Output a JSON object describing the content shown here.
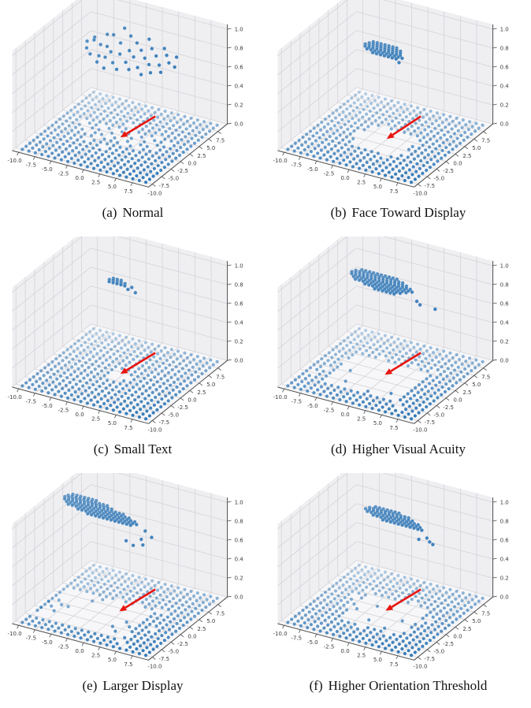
{
  "style": {
    "background": "#ffffff",
    "dot_color": "#2f76b5",
    "arrow_color": "#e8150f",
    "wall_color": "#efeff2",
    "floor_color": "#f7f7f9",
    "grid_color": "#d4d4d8",
    "axis_color": "#4d4d4d",
    "tick_label_color": "#3d3d3d",
    "caption_color": "#111111"
  },
  "chart_data": {
    "type": "scatter3d",
    "layout": {
      "rows": 3,
      "cols": 2,
      "grid": true,
      "view": {
        "elev": 30,
        "azim": -60
      },
      "legend": "none"
    },
    "axes": {
      "x_range": [
        -11,
        10
      ],
      "y_range": [
        -11,
        10
      ],
      "z_range": [
        0,
        1
      ],
      "x_ticks": [
        -10,
        -7.5,
        -5,
        -2.5,
        0,
        2.5,
        5,
        7.5
      ],
      "x_tick_labels": [
        "-10.0",
        "-7.5",
        "-5.0",
        "-2.5",
        "0.0",
        "2.5",
        "5.0",
        "7.5"
      ],
      "y_ticks": [
        -10,
        -7.5,
        -5,
        -2.5,
        0,
        2.5,
        5,
        7.5
      ],
      "y_tick_labels": [
        "-10.0",
        "-7.5",
        "-5.0",
        "-2.5",
        "0.0",
        "2.5",
        "5.0",
        "7.5"
      ],
      "z_ticks": [
        0,
        0.2,
        0.4,
        0.6,
        0.8,
        1
      ],
      "z_tick_labels": [
        "0.0",
        "0.2",
        "0.4",
        "0.6",
        "0.8",
        "1.0"
      ]
    },
    "floor_grid": {
      "x_min": -10,
      "x_max": 9,
      "y_min": -10,
      "y_max": 9,
      "step": 1,
      "z": 0
    },
    "subplots": [
      {
        "id": "a",
        "caption_label": "(a)",
        "caption_text": "Normal",
        "floor_hole_rect": null,
        "floor_holes": [
          [
            -6,
            0
          ],
          [
            -5,
            -1
          ],
          [
            -4,
            1
          ],
          [
            -3,
            0
          ],
          [
            -3,
            -2
          ],
          [
            -2,
            1
          ],
          [
            -2,
            -1
          ],
          [
            -1,
            0
          ],
          [
            -1,
            3
          ],
          [
            0,
            0
          ],
          [
            0,
            -1
          ],
          [
            0,
            2
          ],
          [
            1,
            -2
          ],
          [
            1,
            1
          ],
          [
            2,
            0
          ],
          [
            2,
            -1
          ],
          [
            3,
            1
          ],
          [
            3,
            -2
          ],
          [
            4,
            0
          ],
          [
            5,
            -1
          ],
          [
            -4,
            -3
          ],
          [
            6,
            1
          ],
          [
            -7,
            1
          ],
          [
            4,
            2
          ],
          [
            -1,
            -4
          ]
        ],
        "floor_extra_points": [],
        "cloud": {
          "z": 0.86,
          "rows": [],
          "points": [
            [
              -6.5,
              1.2,
              0.85
            ],
            [
              -6,
              0.2,
              0.82
            ],
            [
              -5.8,
              2,
              0.88
            ],
            [
              -5.2,
              0.8,
              0.9
            ],
            [
              -5,
              -0.6,
              0.8
            ],
            [
              -4.6,
              1.5,
              0.84
            ],
            [
              -4.2,
              2.6,
              0.92
            ],
            [
              -4,
              0,
              0.78
            ],
            [
              -3.6,
              -1.2,
              0.76
            ],
            [
              -3.3,
              1,
              0.86
            ],
            [
              -3,
              2.2,
              0.95
            ],
            [
              -2.8,
              -0.4,
              0.8
            ],
            [
              -2.5,
              0.6,
              0.83
            ],
            [
              -2.2,
              -1.8,
              0.74
            ],
            [
              -2,
              3.4,
              1
            ],
            [
              -1.7,
              1.8,
              0.9
            ],
            [
              -1.4,
              -0.8,
              0.78
            ],
            [
              -1,
              0.4,
              0.84
            ],
            [
              -0.7,
              2.8,
              0.96
            ],
            [
              -0.4,
              -1.5,
              0.75
            ],
            [
              0,
              1.2,
              0.87
            ],
            [
              0.3,
              -0.3,
              0.8
            ],
            [
              0.6,
              2.2,
              0.93
            ],
            [
              1,
              0.6,
              0.84
            ],
            [
              1.3,
              -1.2,
              0.77
            ],
            [
              1.6,
              1.6,
              0.89
            ],
            [
              2,
              3,
              0.97
            ],
            [
              2.3,
              -0.6,
              0.79
            ],
            [
              2.6,
              0.8,
              0.85
            ],
            [
              3,
              2,
              0.92
            ],
            [
              3.3,
              -1.4,
              0.76
            ],
            [
              3.6,
              0.2,
              0.82
            ],
            [
              4,
              1.4,
              0.88
            ],
            [
              4.4,
              -0.8,
              0.78
            ],
            [
              4.7,
              2.4,
              0.94
            ],
            [
              5,
              0.5,
              0.83
            ],
            [
              5.4,
              1.8,
              0.9
            ],
            [
              5.8,
              -0.5,
              0.8
            ],
            [
              6.2,
              1,
              0.86
            ],
            [
              6.8,
              2,
              0.9
            ],
            [
              7.2,
              0.8,
              0.84
            ]
          ]
        },
        "arrow": {
          "tip": [
            0,
            -1.2
          ],
          "tail": [
            3.6,
            1.9
          ]
        }
      },
      {
        "id": "b",
        "caption_label": "(b)",
        "caption_text": "Face Toward Display",
        "floor_hole_rect": [
          -3,
          3,
          -4,
          1
        ],
        "floor_holes": [
          [
            -4,
            -1
          ],
          [
            -4,
            -2
          ],
          [
            4,
            0
          ],
          [
            4,
            -3
          ],
          [
            2,
            -5
          ],
          [
            -2,
            2
          ]
        ],
        "floor_extra_points": [],
        "cloud": {
          "z": 0.86,
          "rows": [
            [
              2.2,
              -3.9,
              7
            ],
            [
              1.65,
              -4.2,
              9
            ],
            [
              1.1,
              -4.5,
              10
            ],
            [
              0.55,
              -4.2,
              10
            ],
            [
              0,
              -3.6,
              10
            ],
            [
              -0.55,
              -2.4,
              7
            ]
          ],
          "points": [
            [
              1.8,
              -0.8,
              0.84
            ]
          ]
        },
        "arrow": {
          "tip": [
            0.3,
            -1.5
          ],
          "tail": [
            3.6,
            1.9
          ]
        }
      },
      {
        "id": "c",
        "caption_label": "(c)",
        "caption_text": "Small Text",
        "floor_hole_rect": null,
        "floor_holes": [
          [
            -1,
            -2
          ],
          [
            0,
            -2
          ],
          [
            -1,
            -1
          ],
          [
            0,
            -1
          ],
          [
            1,
            -1
          ],
          [
            -1,
            0
          ],
          [
            0,
            0
          ]
        ],
        "floor_extra_points": [],
        "cloud": {
          "z": 0.9,
          "rows": [
            [
              1.6,
              -2.7,
              3
            ],
            [
              1.05,
              -3,
              5
            ],
            [
              0.5,
              -2.7,
              5
            ]
          ],
          "points": [
            [
              0.6,
              0.8,
              0.89
            ],
            [
              0.3,
              0.3,
              0.88
            ],
            [
              1.5,
              0.2,
              0.87
            ]
          ]
        },
        "arrow": {
          "tip": [
            0,
            -1.2
          ],
          "tail": [
            3.6,
            1.9
          ]
        }
      },
      {
        "id": "d",
        "caption_label": "(d)",
        "caption_text": "Higher Visual Acuity",
        "floor_hole_rect": [
          -6,
          4,
          -6,
          2
        ],
        "floor_holes": [
          [
            -7,
            0
          ],
          [
            -8,
            -3
          ],
          [
            5,
            -7
          ],
          [
            5,
            3
          ],
          [
            -3,
            3
          ],
          [
            2,
            3
          ],
          [
            6,
            -8
          ],
          [
            -9,
            -5
          ]
        ],
        "floor_extra_points": [
          [
            -5,
            -2
          ],
          [
            -4,
            -5
          ],
          [
            3,
            -5
          ],
          [
            0,
            -6
          ]
        ],
        "cloud": {
          "z": 0.87,
          "rows": [
            [
              3.3,
              -6.3,
              10
            ],
            [
              2.75,
              -6.9,
              13
            ],
            [
              2.2,
              -7.2,
              15
            ],
            [
              1.65,
              -6.9,
              16
            ],
            [
              1.1,
              -6.3,
              16
            ],
            [
              0.55,
              -5.7,
              14
            ],
            [
              0,
              -3.9,
              10
            ],
            [
              -0.55,
              -2.1,
              6
            ]
          ],
          "points": [
            [
              3.9,
              0.3,
              0.82
            ],
            [
              4.5,
              0.1,
              0.8
            ],
            [
              6.6,
              0.5,
              0.78
            ]
          ]
        },
        "arrow": {
          "tip": [
            0,
            -1.5
          ],
          "tail": [
            3.6,
            1.9
          ]
        }
      },
      {
        "id": "e",
        "caption_label": "(e)",
        "caption_text": "Larger Display",
        "floor_hole_rect": [
          -9,
          3,
          -7,
          1
        ],
        "floor_holes": [
          [
            4,
            -6
          ],
          [
            4,
            -8
          ],
          [
            -10,
            -7
          ],
          [
            5,
            2
          ],
          [
            6,
            -3
          ],
          [
            4,
            2
          ],
          [
            -2,
            2
          ],
          [
            1,
            2
          ],
          [
            5,
            -9
          ]
        ],
        "floor_extra_points": [
          [
            -10,
            -3
          ],
          [
            -9,
            -2
          ],
          [
            -8,
            -3
          ],
          [
            -9,
            -4
          ],
          [
            -8,
            -5
          ],
          [
            -10,
            -5
          ],
          [
            -7,
            -3
          ],
          [
            1,
            -5
          ],
          [
            2,
            -6
          ],
          [
            3,
            -4
          ],
          [
            2,
            -3
          ],
          [
            -4,
            1
          ],
          [
            -5,
            0
          ]
        ],
        "cloud": {
          "z": 0.88,
          "rows": [
            [
              4.5,
              -10.6,
              7
            ],
            [
              3.95,
              -11,
              11
            ],
            [
              3.4,
              -11.2,
              13
            ],
            [
              2.85,
              -10.9,
              16
            ],
            [
              2.3,
              -10.3,
              17
            ],
            [
              1.75,
              -9.7,
              18
            ],
            [
              1.2,
              -7.9,
              16
            ],
            [
              0.65,
              -6.1,
              12
            ]
          ],
          "points": [
            [
              2.4,
              0.2,
              0.78
            ],
            [
              3,
              -0.4,
              0.75
            ],
            [
              1.8,
              -0.9,
              0.74
            ],
            [
              3.6,
              0.9,
              0.8
            ],
            [
              0.6,
              -0.7,
              0.76
            ],
            [
              2.2,
              1.6,
              0.82
            ]
          ]
        },
        "arrow": {
          "tip": [
            0,
            -1.5
          ],
          "tail": [
            3.6,
            1.9
          ]
        }
      },
      {
        "id": "f",
        "caption_label": "(f)",
        "caption_text": "Higher Orientation Threshold",
        "floor_hole_rect": [
          -4,
          4,
          -5,
          2
        ],
        "floor_holes": [
          [
            -5,
            0
          ],
          [
            -5,
            -2
          ],
          [
            5,
            -1
          ],
          [
            5,
            -4
          ],
          [
            -6,
            1
          ],
          [
            -1,
            -6
          ],
          [
            3,
            -6
          ],
          [
            -5,
            3
          ],
          [
            2,
            3
          ],
          [
            6,
            0
          ]
        ],
        "floor_extra_points": [
          [
            -2,
            0
          ],
          [
            3,
            -2
          ],
          [
            -1,
            -4
          ],
          [
            2,
            -5
          ],
          [
            -4,
            -2
          ]
        ],
        "cloud": {
          "z": 0.88,
          "rows": [
            [
              3.85,
              -4.5,
              7
            ],
            [
              3.3,
              -5.1,
              11
            ],
            [
              2.75,
              -5.4,
              13
            ],
            [
              2.2,
              -4.8,
              14
            ],
            [
              1.65,
              -3.6,
              13
            ],
            [
              1.1,
              -1.8,
              11
            ]
          ],
          "points": [
            [
              5.1,
              0.9,
              0.82
            ],
            [
              5.7,
              0.6,
              0.8
            ],
            [
              6.3,
              0.4,
              0.79
            ],
            [
              4.2,
              0.3,
              0.81
            ]
          ]
        },
        "arrow": {
          "tip": [
            0,
            -1.3
          ],
          "tail": [
            3.6,
            1.9
          ]
        }
      }
    ]
  }
}
